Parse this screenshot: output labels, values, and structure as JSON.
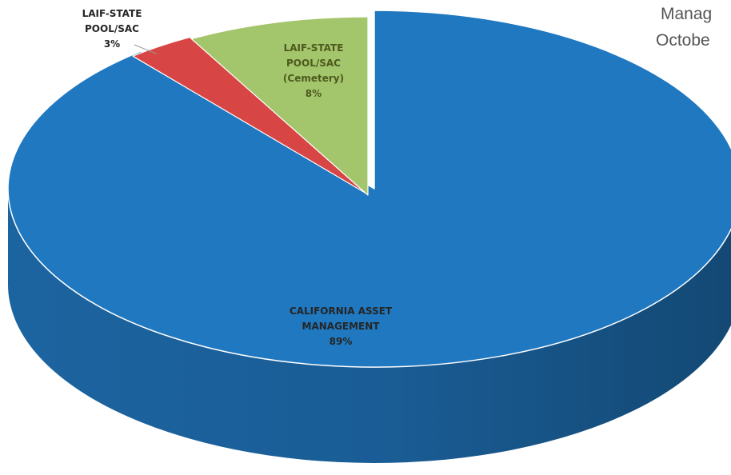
{
  "chart_data": {
    "type": "pie",
    "style": "3d",
    "title_lines": [
      "Manag",
      "Octobe"
    ],
    "slices": [
      {
        "label_lines": [
          "CALIFORNIA ASSET",
          "MANAGEMENT"
        ],
        "value": 89,
        "value_label": "89%",
        "color": "#1f78c0",
        "side_color": "#175c96",
        "exploded": false
      },
      {
        "label_lines": [
          "LAIF-STATE",
          "POOL/SAC"
        ],
        "value": 3,
        "value_label": "3%",
        "color": "#d84545",
        "side_color": "#8e2626",
        "exploded": true
      },
      {
        "label_lines": [
          "LAIF-STATE",
          "POOL/SAC",
          "(Cemetery)"
        ],
        "value": 8,
        "value_label": "8%",
        "color": "#a3c56b",
        "side_color": "#6e8b3d",
        "exploded": true
      }
    ],
    "legend": "none"
  }
}
